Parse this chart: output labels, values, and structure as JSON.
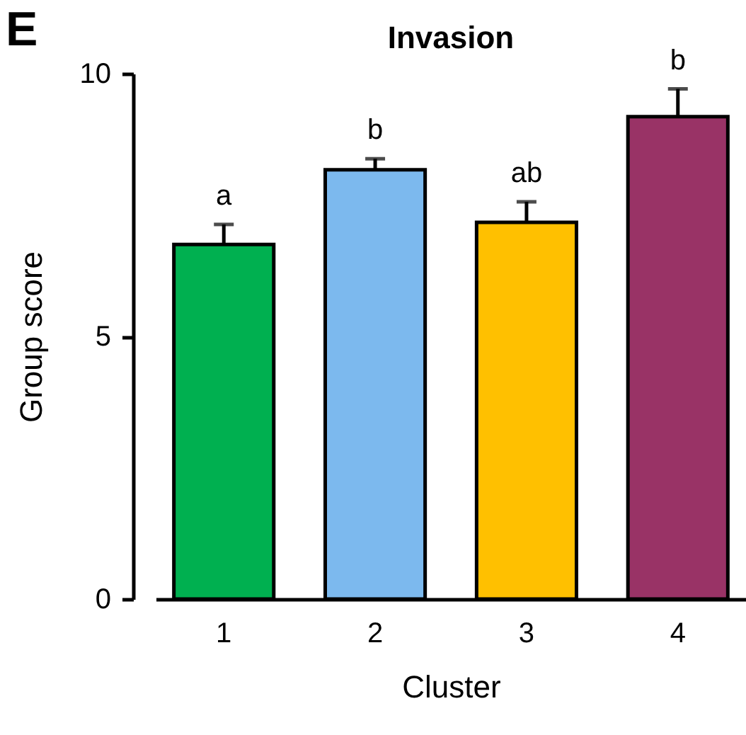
{
  "chart_data": {
    "type": "bar",
    "title": "Invasion",
    "xlabel": "Cluster",
    "ylabel": "Group score",
    "categories": [
      "1",
      "2",
      "3",
      "4"
    ],
    "values": [
      6.75,
      8.17,
      7.17,
      9.18
    ],
    "colors": [
      "#00b050",
      "#7cb9ee",
      "#ffc000",
      "#993366"
    ],
    "errors": [
      [
        6.75,
        7.13
      ],
      [
        8.17,
        8.38
      ],
      [
        7.17,
        7.56
      ],
      [
        9.18,
        9.71
      ]
    ],
    "ylim": [
      0,
      10
    ],
    "yticks": [
      0,
      5,
      10
    ],
    "annotations": [
      "E",
      {
        "text": "a",
        "x": "1",
        "y": 7.13
      },
      {
        "text": "b",
        "x": "2",
        "y": 8.38
      },
      {
        "text": "ab",
        "x": "3",
        "y": 7.56
      },
      {
        "text": "b",
        "x": "4",
        "y": 9.71
      }
    ]
  }
}
